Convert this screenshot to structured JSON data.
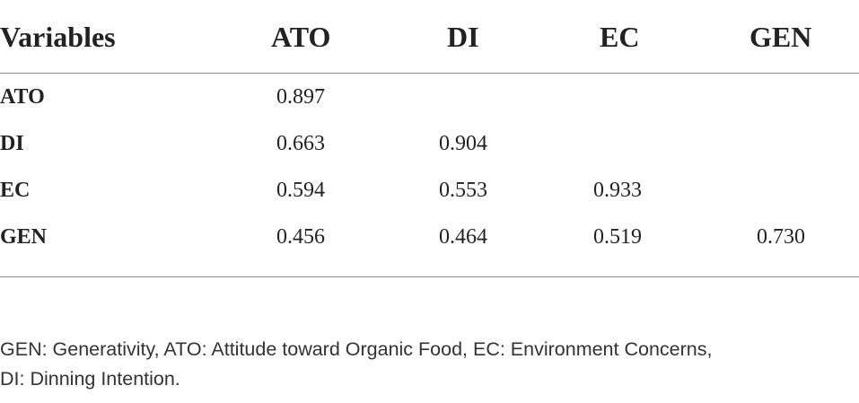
{
  "table": {
    "columns": [
      "Variables",
      "ATO",
      "DI",
      "EC",
      "GEN"
    ],
    "rows": [
      {
        "label": "ATO",
        "values": [
          "0.897",
          "",
          "",
          ""
        ]
      },
      {
        "label": "DI",
        "values": [
          "0.663",
          "0.904",
          "",
          ""
        ]
      },
      {
        "label": "EC",
        "values": [
          "0.594",
          "0.553",
          "0.933",
          ""
        ]
      },
      {
        "label": "GEN",
        "values": [
          "0.456",
          "0.464",
          "0.519",
          "0.730"
        ]
      }
    ]
  },
  "footnote": {
    "line1": "GEN: Generativity, ATO: Attitude toward Organic Food, EC: Environment Concerns,",
    "line2": "DI: Dinning Intention."
  }
}
